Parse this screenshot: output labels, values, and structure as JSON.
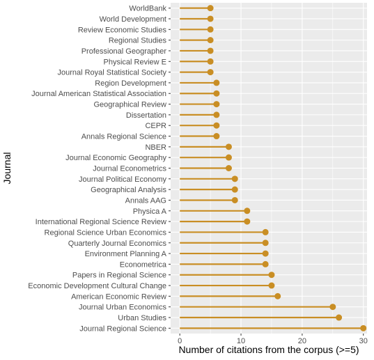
{
  "chart_data": {
    "type": "lollipop",
    "xlabel": "Number of citations from the corpus (>=5)",
    "ylabel": "Journal",
    "xlim": [
      -1.5,
      30.6
    ],
    "x_ticks": [
      0,
      10,
      20,
      30
    ],
    "x_tick_labels": [
      "0",
      "10",
      "20",
      "30"
    ],
    "grid": true,
    "color": "#C98E24",
    "categories": [
      "WorldBank",
      "World Development",
      "Review Economic Studies",
      "Regional Studies",
      "Professional Geographer",
      "Physical Review E",
      "Journal Royal Statistical Society",
      "Region Development",
      "Journal American Statistical Association",
      "Geographical Review",
      "Dissertation",
      "CEPR",
      "Annals Regional Science",
      "NBER",
      "Journal Economic Geography",
      "Journal Econometrics",
      "Journal Political Economy",
      "Geographical Analysis",
      "Annals AAG",
      "Physica A",
      "International Regional Science Review",
      "Regional Science Urban Economics",
      "Quarterly Journal Economics",
      "Environment Planning A",
      "Econometrica",
      "Papers in Regional Science",
      "Economic Development Cultural Change",
      "American Economic Review",
      "Journal Urban Economics",
      "Urban Studies",
      "Journal Regional Science"
    ],
    "values": [
      5,
      5,
      5,
      5,
      5,
      5,
      5,
      6,
      6,
      6,
      6,
      6,
      6,
      8,
      8,
      8,
      9,
      9,
      9,
      11,
      11,
      14,
      14,
      14,
      14,
      15,
      15,
      16,
      25,
      26,
      30
    ]
  }
}
